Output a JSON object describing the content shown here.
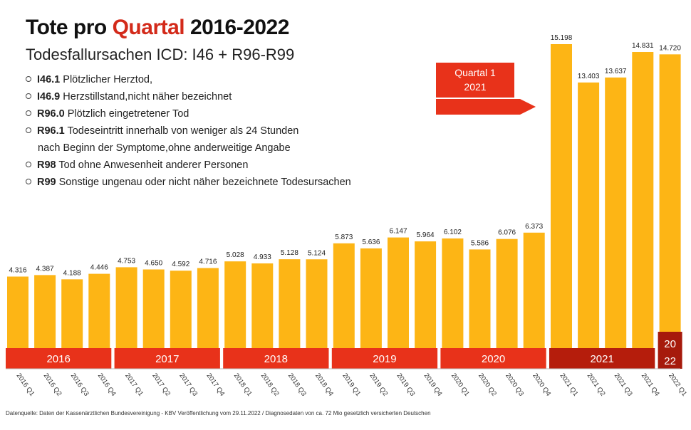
{
  "chart_data": {
    "type": "bar",
    "title_parts": [
      "Tote pro ",
      "Quartal",
      " 2016-2022"
    ],
    "subtitle": "Todesfallursachen ICD: I46 + R96-R99",
    "legend_items": [
      {
        "code": "I46.1",
        "text": "Plötzlicher Herztod,"
      },
      {
        "code": "I46.9",
        "text": "Herzstillstand,nicht näher bezeichnet"
      },
      {
        "code": "R96.0",
        "text": "Plötzlich eingetretener Tod"
      },
      {
        "code": "R96.1",
        "text": "Todeseintritt innerhalb von weniger als 24 Stunden",
        "cont": "nach Beginn der Symptome,ohne anderweitige Angabe"
      },
      {
        "code": "R98",
        "text": "Tod ohne Anwesenheit anderer Personen"
      },
      {
        "code": "R99",
        "text": "Sonstige ungenau oder nicht näher bezeichnete Todesursachen"
      }
    ],
    "categories": [
      "2016 Q1",
      "2016 Q2",
      "2016 Q3",
      "2016 Q4",
      "2017 Q1",
      "2017 Q2",
      "2017 Q3",
      "2017 Q4",
      "2018 Q1",
      "2018 Q2",
      "2018 Q3",
      "2018 Q4",
      "2019 Q1",
      "2019 Q2",
      "2019 Q3",
      "2019 Q4",
      "2020 Q1",
      "2020 Q2",
      "2020 Q3",
      "2020 Q4",
      "2021 Q1",
      "2021 Q2",
      "2021 Q3",
      "2021 Q4",
      "2022 Q1"
    ],
    "values": [
      4316,
      4387,
      4188,
      4446,
      4753,
      4650,
      4592,
      4716,
      5028,
      4933,
      5128,
      5124,
      5873,
      5636,
      6147,
      5964,
      6102,
      5586,
      6076,
      6373,
      15198,
      13403,
      13637,
      14831,
      14720
    ],
    "data_labels": [
      "4.316",
      "4.387",
      "4.188",
      "4.446",
      "4.753",
      "4.650",
      "4.592",
      "4.716",
      "5.028",
      "4.933",
      "5.128",
      "5.124",
      "5.873",
      "5.636",
      "6.147",
      "5.964",
      "6.102",
      "5.586",
      "6.076",
      "6.373",
      "15.198",
      "13.403",
      "13.637",
      "14.831",
      "14.720"
    ],
    "year_bands": [
      {
        "label": "2016",
        "color": "#e8321a"
      },
      {
        "label": "2017",
        "color": "#e8321a"
      },
      {
        "label": "2018",
        "color": "#e8321a"
      },
      {
        "label": "2019",
        "color": "#e8321a"
      },
      {
        "label": "2020",
        "color": "#e8321a"
      },
      {
        "label": "2021",
        "color": "#b51d0c"
      },
      {
        "label": "20 22",
        "lines": [
          "20",
          "22"
        ],
        "color": "#a61a0c"
      }
    ],
    "annotation": {
      "lines": [
        "Quartal 1",
        "2021"
      ],
      "color": "#e8321a"
    },
    "bar_color": "#fdb515",
    "ylim": [
      0,
      15500
    ],
    "grid": false,
    "source": "Datenquelle: Daten der Kassenärztlichen Bundesvereinigung - KBV Veröffentlichung vom 29.11.2022 / Diagnosedaten von ca. 72 Mio gesetzlich versicherten Deutschen"
  }
}
